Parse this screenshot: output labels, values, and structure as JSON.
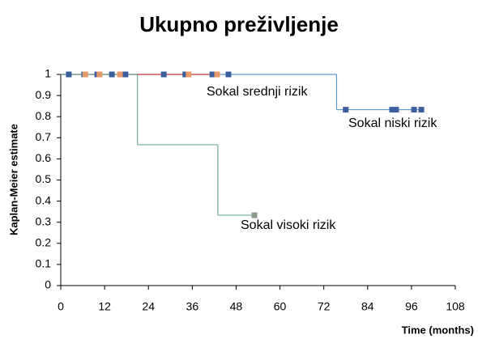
{
  "chart_data": {
    "type": "line",
    "step": true,
    "title": "Ukupno preživljenje",
    "x_label": "Time (months)",
    "y_label": "Kaplan-Meier estimate",
    "xlim": [
      0,
      108
    ],
    "xticks": [
      0,
      12,
      24,
      36,
      48,
      60,
      72,
      84,
      96,
      108
    ],
    "ylim": [
      0,
      1
    ],
    "yticks": [
      0,
      0.1,
      0.2,
      0.3,
      0.4,
      0.5,
      0.6,
      0.7,
      0.8,
      0.9,
      1
    ],
    "grid": false,
    "series": [
      {
        "name": "Sokal niski rizik",
        "color": "#5b9bd5",
        "marker_color": "#3b5f9e",
        "label_color": "#2e5597",
        "x": [
          0,
          75.5,
          99.5
        ],
        "values": [
          1,
          0.833,
          0.833
        ],
        "censored": {
          "x": [
            2.2,
            6.4,
            10,
            14,
            17.7,
            28.2,
            34.1,
            41.5,
            45.9,
            78,
            90.7,
            91.8,
            96.7,
            98.7
          ],
          "values": [
            1,
            1,
            1,
            1,
            1,
            1,
            1,
            1,
            1,
            0.833,
            0.833,
            0.833,
            0.833,
            0.833
          ]
        }
      },
      {
        "name": "Sokal srednji rizik",
        "color": "#e0403c",
        "marker_color": "#e8996a",
        "label_color": "#c00000",
        "x": [
          0,
          43
        ],
        "values": [
          1,
          1
        ],
        "censored": {
          "x": [
            6.7,
            10.6,
            16.2,
            35,
            42.8
          ],
          "values": [
            1,
            1,
            1,
            1,
            1
          ]
        }
      },
      {
        "name": "Sokal visoki rizik",
        "color": "#6fae96",
        "marker_color": "#8a9a8a",
        "label_color": "#4f6228",
        "x": [
          0,
          21,
          43,
          53
        ],
        "values": [
          1,
          0.667,
          0.333,
          0.333
        ],
        "censored": {
          "x": [
            53
          ],
          "values": [
            0.333
          ]
        }
      }
    ]
  }
}
